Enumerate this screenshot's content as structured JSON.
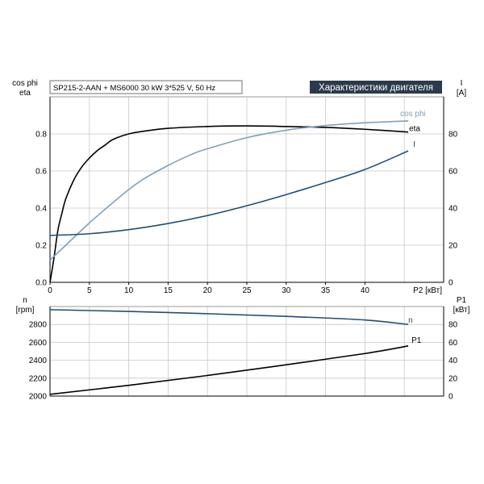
{
  "header": {
    "model": "SP215-2-AAN + MS6000   30  kW   3*525  V, 50  Hz",
    "title": "Характеристики двигателя"
  },
  "colors": {
    "eta": "#000000",
    "cosphi": "#7f9fbf",
    "current": "#1f4e79",
    "speed": "#1f4e79",
    "p1": "#000000",
    "title_bg": "#2b3a4d"
  },
  "chart_data": [
    {
      "type": "line",
      "panel": "upper",
      "xlabel": "P2 [кВт]",
      "xlim": [
        0,
        50
      ],
      "x_ticks": [
        "0",
        "5",
        "10",
        "15",
        "20",
        "25",
        "30",
        "35",
        "40"
      ],
      "left_axis": {
        "label_lines": [
          "cos phi",
          "eta"
        ],
        "ylim": [
          0,
          1.0
        ],
        "ticks": [
          "0.0",
          "0.2",
          "0.4",
          "0.6",
          "0.8"
        ]
      },
      "right_axis": {
        "label_lines": [
          "I",
          "[A]"
        ],
        "ylim": [
          0,
          100
        ],
        "ticks": [
          "0",
          "20",
          "40",
          "60",
          "80"
        ]
      },
      "grid": true,
      "series": [
        {
          "name": "eta",
          "axis": "left",
          "x": [
            0,
            0.5,
            1,
            1.5,
            2,
            3,
            4,
            5,
            6,
            7,
            8,
            10,
            12,
            15,
            20,
            25,
            30,
            35,
            40,
            45.5
          ],
          "y": [
            0.0,
            0.13,
            0.28,
            0.37,
            0.45,
            0.55,
            0.62,
            0.67,
            0.71,
            0.74,
            0.77,
            0.8,
            0.815,
            0.83,
            0.84,
            0.843,
            0.84,
            0.835,
            0.825,
            0.81
          ]
        },
        {
          "name": "cos phi",
          "axis": "left",
          "x": [
            0,
            2,
            5,
            8,
            10,
            12,
            15,
            18,
            20,
            25,
            30,
            35,
            40,
            45.5
          ],
          "y": [
            0.12,
            0.2,
            0.32,
            0.43,
            0.5,
            0.56,
            0.63,
            0.69,
            0.72,
            0.78,
            0.82,
            0.845,
            0.86,
            0.87
          ]
        },
        {
          "name": "I",
          "axis": "right",
          "x": [
            0,
            5,
            10,
            15,
            20,
            25,
            30,
            35,
            40,
            45.5
          ],
          "y": [
            25.3,
            26.2,
            28.4,
            31.7,
            36,
            41.3,
            47.3,
            53.8,
            60.8,
            70.8
          ]
        }
      ]
    },
    {
      "type": "line",
      "panel": "lower",
      "xlim": [
        0,
        50
      ],
      "left_axis": {
        "label_lines": [
          "n",
          "[rpm]"
        ],
        "ylim": [
          2000,
          3000
        ],
        "ticks": [
          "2000",
          "2200",
          "2400",
          "2600",
          "2800"
        ]
      },
      "right_axis": {
        "label_lines": [
          "P1",
          "[кВт]"
        ],
        "ylim": [
          0,
          100
        ],
        "ticks": [
          "0",
          "20",
          "40",
          "60",
          "80"
        ]
      },
      "grid": true,
      "series": [
        {
          "name": "n",
          "axis": "left",
          "x": [
            0,
            10,
            20,
            30,
            40,
            45.5
          ],
          "y": [
            2965,
            2945,
            2920,
            2890,
            2850,
            2800
          ]
        },
        {
          "name": "P1",
          "axis": "right",
          "x": [
            0,
            10,
            20,
            30,
            40,
            45.5
          ],
          "y": [
            2,
            12,
            23,
            35,
            47.5,
            56
          ]
        }
      ]
    }
  ]
}
